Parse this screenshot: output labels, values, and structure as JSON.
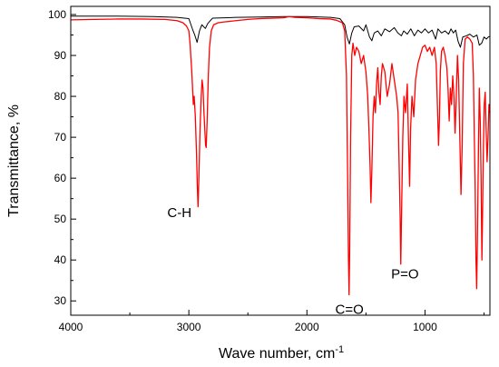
{
  "chart_data": {
    "type": "line",
    "xlabel": "Wave number, cm",
    "xlabel_superscript": "-1",
    "ylabel": "Transmittance, %",
    "xlim": [
      4000,
      450
    ],
    "ylim": [
      26.5,
      102
    ],
    "x_ticks": [
      4000,
      3000,
      2000,
      1000
    ],
    "y_ticks": [
      30,
      40,
      50,
      60,
      70,
      80,
      90,
      100
    ],
    "grid": false,
    "series": [
      {
        "color": "#000000",
        "points": [
          [
            4000,
            99.6
          ],
          [
            3600,
            99.6
          ],
          [
            3300,
            99.5
          ],
          [
            3100,
            99.3
          ],
          [
            3000,
            99.0
          ],
          [
            2970,
            96.5
          ],
          [
            2950,
            95.0
          ],
          [
            2930,
            93.2
          ],
          [
            2910,
            96.0
          ],
          [
            2890,
            97.5
          ],
          [
            2860,
            96.6
          ],
          [
            2840,
            97.8
          ],
          [
            2800,
            99.1
          ],
          [
            2600,
            99.3
          ],
          [
            2400,
            99.4
          ],
          [
            2200,
            99.5
          ],
          [
            2000,
            99.5
          ],
          [
            1800,
            99.3
          ],
          [
            1720,
            99.0
          ],
          [
            1680,
            97.5
          ],
          [
            1660,
            94.5
          ],
          [
            1640,
            92.8
          ],
          [
            1620,
            95.5
          ],
          [
            1600,
            97.0
          ],
          [
            1560,
            97.2
          ],
          [
            1520,
            96.0
          ],
          [
            1500,
            97.5
          ],
          [
            1470,
            94.5
          ],
          [
            1450,
            93.6
          ],
          [
            1430,
            95.5
          ],
          [
            1400,
            96.0
          ],
          [
            1370,
            94.8
          ],
          [
            1340,
            96.5
          ],
          [
            1300,
            95.8
          ],
          [
            1260,
            96.8
          ],
          [
            1230,
            95.5
          ],
          [
            1200,
            94.8
          ],
          [
            1180,
            96.0
          ],
          [
            1150,
            95.2
          ],
          [
            1120,
            96.5
          ],
          [
            1090,
            94.8
          ],
          [
            1060,
            96.2
          ],
          [
            1030,
            95.5
          ],
          [
            1000,
            96.5
          ],
          [
            970,
            95.5
          ],
          [
            940,
            96.2
          ],
          [
            910,
            94.0
          ],
          [
            890,
            96.5
          ],
          [
            860,
            95.5
          ],
          [
            830,
            96.0
          ],
          [
            800,
            95.2
          ],
          [
            780,
            96.5
          ],
          [
            760,
            95.5
          ],
          [
            740,
            96.2
          ],
          [
            720,
            93.5
          ],
          [
            700,
            92.0
          ],
          [
            680,
            94.5
          ],
          [
            650,
            94.8
          ],
          [
            620,
            95.2
          ],
          [
            590,
            94.5
          ],
          [
            560,
            95.0
          ],
          [
            540,
            92.5
          ],
          [
            520,
            93.0
          ],
          [
            500,
            94.5
          ],
          [
            480,
            94.0
          ],
          [
            460,
            94.6
          ],
          [
            450,
            94.6
          ]
        ]
      },
      {
        "color": "#ff0000",
        "points": [
          [
            4000,
            98.7
          ],
          [
            3800,
            98.8
          ],
          [
            3600,
            98.9
          ],
          [
            3400,
            98.9
          ],
          [
            3200,
            98.8
          ],
          [
            3100,
            98.5
          ],
          [
            3050,
            98.0
          ],
          [
            3020,
            97.2
          ],
          [
            3000,
            96.0
          ],
          [
            2990,
            93.0
          ],
          [
            2975,
            86.0
          ],
          [
            2962,
            78.0
          ],
          [
            2955,
            80.0
          ],
          [
            2945,
            75.0
          ],
          [
            2935,
            66.0
          ],
          [
            2928,
            58.0
          ],
          [
            2922,
            53.0
          ],
          [
            2915,
            60.0
          ],
          [
            2905,
            72.0
          ],
          [
            2895,
            80.0
          ],
          [
            2888,
            84.0
          ],
          [
            2880,
            82.0
          ],
          [
            2872,
            76.0
          ],
          [
            2865,
            72.0
          ],
          [
            2858,
            68.0
          ],
          [
            2853,
            67.5
          ],
          [
            2845,
            74.0
          ],
          [
            2835,
            85.0
          ],
          [
            2825,
            92.0
          ],
          [
            2810,
            96.0
          ],
          [
            2790,
            97.5
          ],
          [
            2750,
            98.0
          ],
          [
            2700,
            98.2
          ],
          [
            2600,
            98.5
          ],
          [
            2500,
            98.8
          ],
          [
            2400,
            99.0
          ],
          [
            2300,
            99.1
          ],
          [
            2200,
            99.2
          ],
          [
            2150,
            99.5
          ],
          [
            2100,
            99.3
          ],
          [
            2000,
            99.2
          ],
          [
            1900,
            99.0
          ],
          [
            1800,
            98.9
          ],
          [
            1750,
            98.6
          ],
          [
            1700,
            98.0
          ],
          [
            1680,
            96.0
          ],
          [
            1665,
            85.0
          ],
          [
            1655,
            60.0
          ],
          [
            1648,
            40.0
          ],
          [
            1643,
            31.5
          ],
          [
            1638,
            42.0
          ],
          [
            1630,
            70.0
          ],
          [
            1620,
            90.0
          ],
          [
            1610,
            93.0
          ],
          [
            1595,
            90.0
          ],
          [
            1580,
            92.0
          ],
          [
            1560,
            91.0
          ],
          [
            1540,
            88.0
          ],
          [
            1520,
            90.0
          ],
          [
            1500,
            86.0
          ],
          [
            1485,
            80.0
          ],
          [
            1475,
            72.0
          ],
          [
            1465,
            63.0
          ],
          [
            1458,
            54.0
          ],
          [
            1450,
            62.0
          ],
          [
            1440,
            75.0
          ],
          [
            1430,
            80.0
          ],
          [
            1420,
            76.0
          ],
          [
            1410,
            83.0
          ],
          [
            1400,
            87.0
          ],
          [
            1390,
            81.0
          ],
          [
            1380,
            78.0
          ],
          [
            1370,
            85.0
          ],
          [
            1360,
            88.0
          ],
          [
            1340,
            86.0
          ],
          [
            1320,
            80.0
          ],
          [
            1300,
            83.0
          ],
          [
            1280,
            88.0
          ],
          [
            1260,
            84.0
          ],
          [
            1240,
            80.0
          ],
          [
            1228,
            76.0
          ],
          [
            1218,
            62.0
          ],
          [
            1210,
            50.0
          ],
          [
            1205,
            39.0
          ],
          [
            1198,
            52.0
          ],
          [
            1188,
            70.0
          ],
          [
            1178,
            80.0
          ],
          [
            1165,
            76.0
          ],
          [
            1150,
            83.0
          ],
          [
            1140,
            70.0
          ],
          [
            1130,
            58.0
          ],
          [
            1122,
            72.0
          ],
          [
            1110,
            80.0
          ],
          [
            1095,
            75.0
          ],
          [
            1080,
            84.0
          ],
          [
            1060,
            88.0
          ],
          [
            1040,
            90.0
          ],
          [
            1020,
            92.0
          ],
          [
            1000,
            92.5
          ],
          [
            980,
            91.0
          ],
          [
            960,
            92.0
          ],
          [
            940,
            90.0
          ],
          [
            920,
            92.0
          ],
          [
            905,
            88.0
          ],
          [
            895,
            78.0
          ],
          [
            885,
            68.0
          ],
          [
            878,
            74.0
          ],
          [
            870,
            86.0
          ],
          [
            860,
            91.0
          ],
          [
            845,
            92.0
          ],
          [
            830,
            90.0
          ],
          [
            815,
            87.0
          ],
          [
            805,
            82.0
          ],
          [
            795,
            74.0
          ],
          [
            785,
            82.0
          ],
          [
            775,
            78.0
          ],
          [
            765,
            85.0
          ],
          [
            755,
            80.0
          ],
          [
            745,
            71.0
          ],
          [
            735,
            80.0
          ],
          [
            725,
            90.0
          ],
          [
            715,
            84.0
          ],
          [
            705,
            70.0
          ],
          [
            695,
            56.0
          ],
          [
            685,
            68.0
          ],
          [
            675,
            88.0
          ],
          [
            660,
            94.0
          ],
          [
            640,
            94.5
          ],
          [
            620,
            94.0
          ],
          [
            600,
            93.0
          ],
          [
            590,
            85.0
          ],
          [
            582,
            70.0
          ],
          [
            575,
            58.0
          ],
          [
            568,
            40.0
          ],
          [
            562,
            33.0
          ],
          [
            556,
            45.0
          ],
          [
            548,
            65.0
          ],
          [
            540,
            82.0
          ],
          [
            532,
            74.0
          ],
          [
            525,
            60.0
          ],
          [
            518,
            40.0
          ],
          [
            512,
            52.0
          ],
          [
            505,
            68.0
          ],
          [
            498,
            78.0
          ],
          [
            490,
            81.0
          ],
          [
            482,
            72.0
          ],
          [
            474,
            64.0
          ],
          [
            466,
            70.0
          ],
          [
            458,
            78.0
          ],
          [
            450,
            76.0
          ]
        ]
      }
    ],
    "annotations": [
      {
        "text": "C-H",
        "x": 3080,
        "y": 50.5
      },
      {
        "text": "C=O",
        "x": 1640,
        "y": 26.8
      },
      {
        "text": "P=O",
        "x": 1170,
        "y": 35.5
      }
    ]
  }
}
